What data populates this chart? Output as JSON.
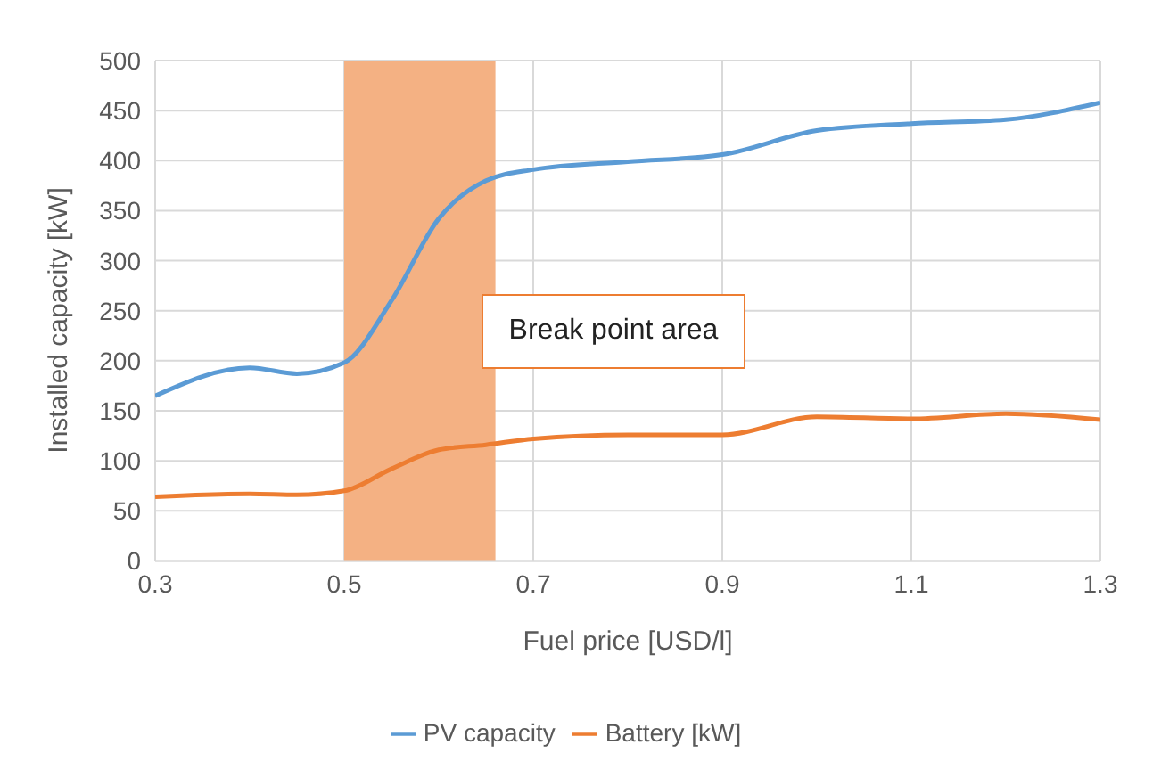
{
  "chart_data": {
    "type": "line",
    "xlabel": "Fuel price [USD/l]",
    "ylabel": "Installed capacity [kW]",
    "x": [
      0.3,
      0.4,
      0.45,
      0.5,
      0.55,
      0.6,
      0.65,
      0.7,
      0.8,
      0.9,
      1.0,
      1.1,
      1.2,
      1.3
    ],
    "series": [
      {
        "name": "PV capacity",
        "color": "#5b9bd5",
        "values": [
          165,
          193,
          187,
          198,
          260,
          342,
          380,
          391,
          399,
          406,
          430,
          437,
          441,
          458
        ]
      },
      {
        "name": "Battery [kW]",
        "color": "#ed7d31",
        "values": [
          64,
          67,
          66,
          70,
          92,
          111,
          116,
          122,
          126,
          126,
          144,
          142,
          147,
          141
        ]
      }
    ],
    "xlim": [
      0.3,
      1.3
    ],
    "xticks": [
      {
        "value": 0.3,
        "label": "0.3"
      },
      {
        "value": 0.5,
        "label": "0.5"
      },
      {
        "value": 0.7,
        "label": "0.7"
      },
      {
        "value": 0.9,
        "label": "0.9"
      },
      {
        "value": 1.1,
        "label": "1.1"
      },
      {
        "value": 1.3,
        "label": "1.3"
      }
    ],
    "ylim": [
      0,
      500
    ],
    "yticks": [
      0,
      50,
      100,
      150,
      200,
      250,
      300,
      350,
      400,
      450,
      500
    ],
    "bands": [
      {
        "axis": "x",
        "from": 0.5,
        "to": 0.66,
        "color": "#f4b183"
      }
    ],
    "annotations": [
      "Break point area"
    ],
    "grid": true,
    "legend": "bottom",
    "marker": "none",
    "line_style": "solid"
  }
}
